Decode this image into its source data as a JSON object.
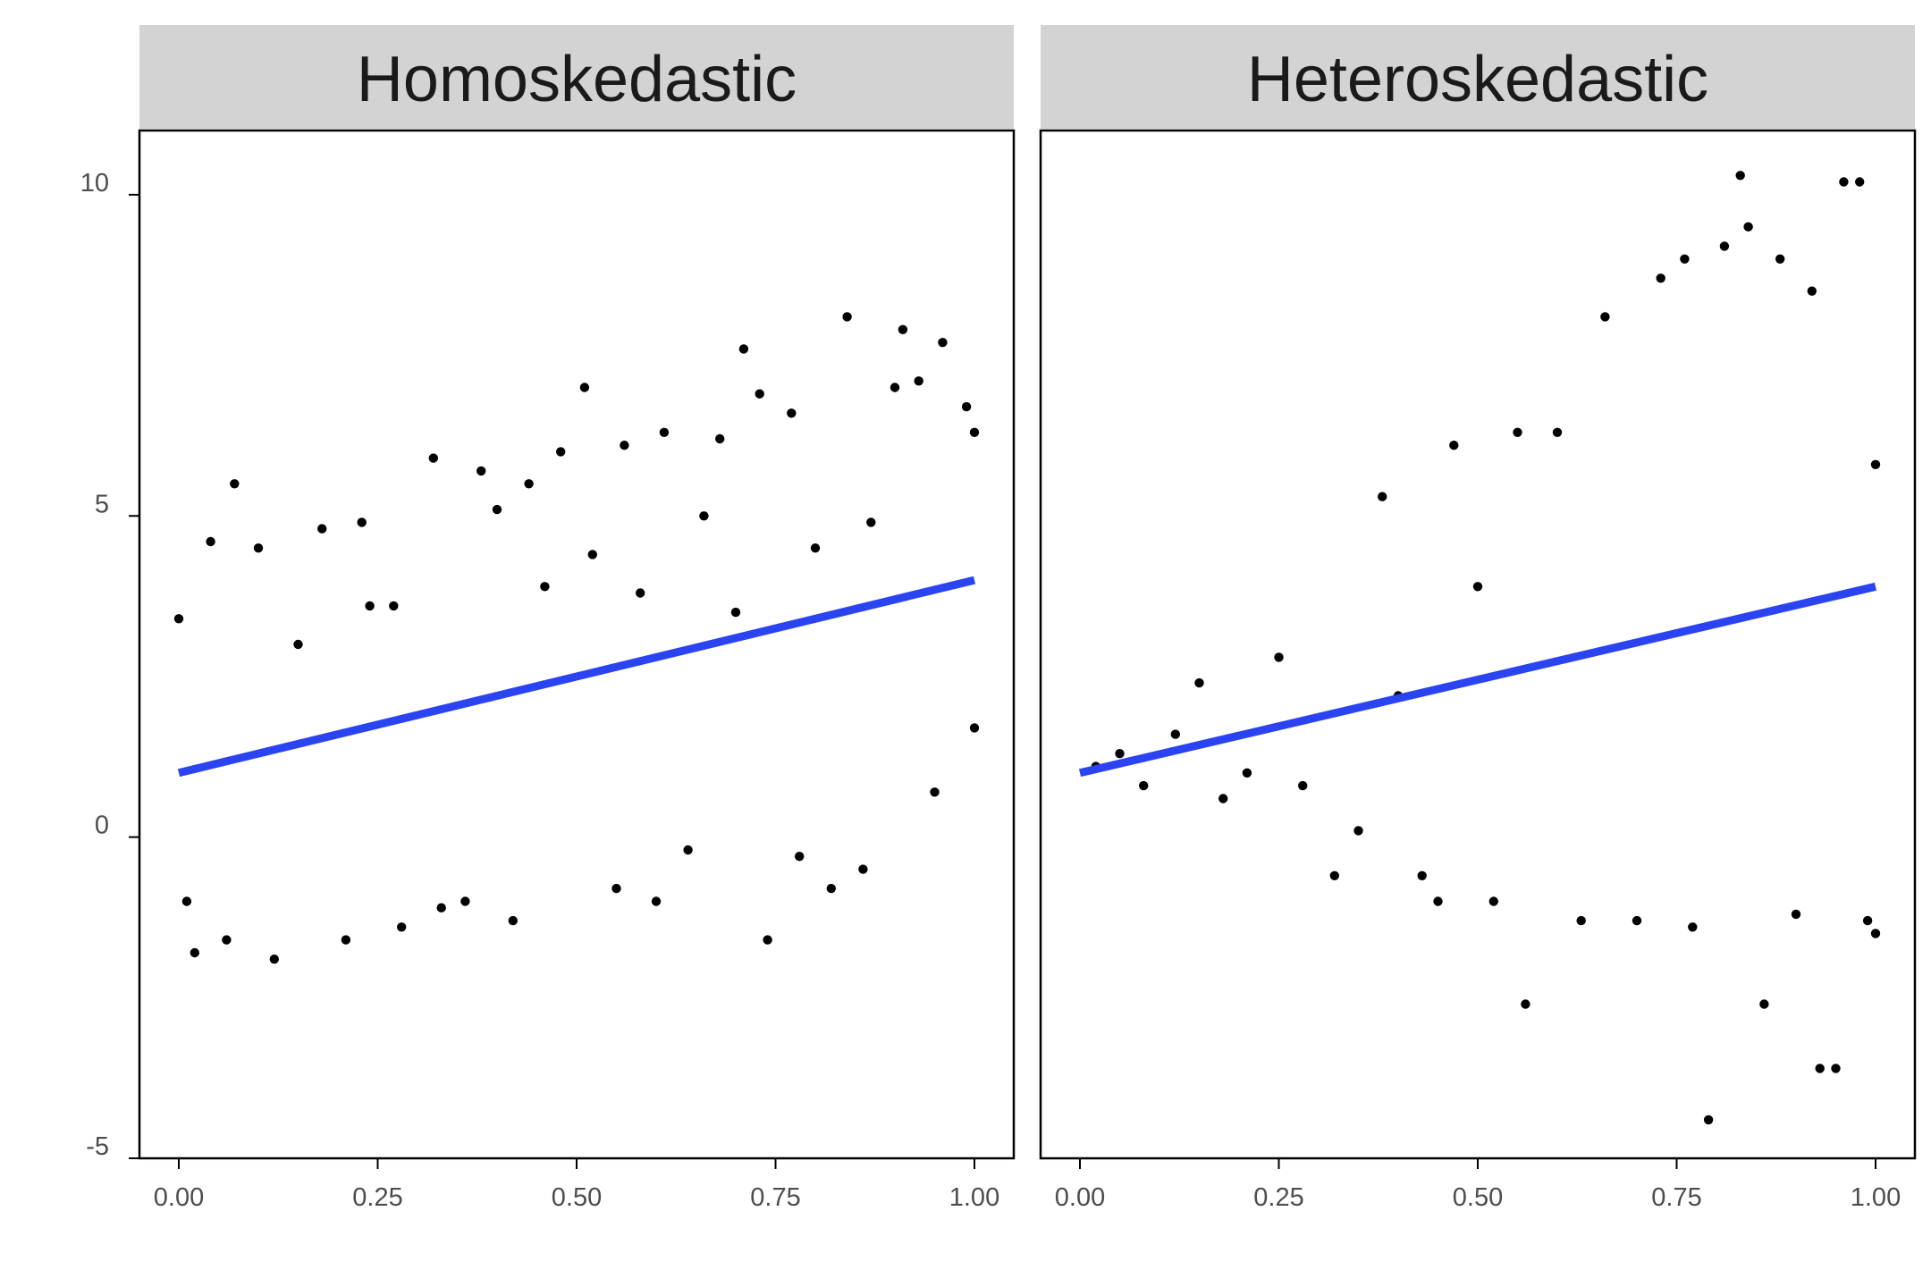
{
  "chart_data": {
    "type": "scatter",
    "facets": [
      "Homoskedastic",
      "Heteroskedastic"
    ],
    "x_axis": {
      "range": [
        0,
        1
      ],
      "ticks": [
        0,
        0.25,
        0.5,
        0.75,
        1
      ],
      "tick_labels": [
        "0.00",
        "0.25",
        "0.50",
        "0.75",
        "1.00"
      ]
    },
    "y_axis": {
      "range": [
        -5,
        11
      ],
      "ticks": [
        -5,
        0,
        5,
        10
      ],
      "tick_labels": [
        "-5",
        "0",
        "5",
        "10"
      ],
      "shared": true
    },
    "grid": false,
    "legend": "none",
    "point_color": "#000000",
    "fit_color": "#2b44f2",
    "panels": [
      {
        "name": "Homoskedastic",
        "fit_line": {
          "x": [
            0,
            1
          ],
          "y": [
            1.0,
            4.0
          ]
        },
        "points": [
          [
            0.0,
            3.4
          ],
          [
            0.01,
            -1.0
          ],
          [
            0.02,
            -1.8
          ],
          [
            0.04,
            4.6
          ],
          [
            0.07,
            5.5
          ],
          [
            0.12,
            -1.9
          ],
          [
            0.1,
            4.5
          ],
          [
            0.06,
            -1.6
          ],
          [
            0.15,
            3.0
          ],
          [
            0.18,
            4.8
          ],
          [
            0.21,
            -1.6
          ],
          [
            0.23,
            4.9
          ],
          [
            0.24,
            3.6
          ],
          [
            0.27,
            3.6
          ],
          [
            0.28,
            -1.4
          ],
          [
            0.32,
            5.9
          ],
          [
            0.33,
            -1.1
          ],
          [
            0.36,
            -1.0
          ],
          [
            0.38,
            5.7
          ],
          [
            0.4,
            5.1
          ],
          [
            0.42,
            -1.3
          ],
          [
            0.44,
            5.5
          ],
          [
            0.46,
            3.9
          ],
          [
            0.48,
            6.0
          ],
          [
            0.51,
            7.0
          ],
          [
            0.52,
            4.4
          ],
          [
            0.55,
            -0.8
          ],
          [
            0.56,
            6.1
          ],
          [
            0.58,
            3.8
          ],
          [
            0.6,
            -1.0
          ],
          [
            0.61,
            6.3
          ],
          [
            0.64,
            -0.2
          ],
          [
            0.66,
            5.0
          ],
          [
            0.68,
            6.2
          ],
          [
            0.7,
            3.5
          ],
          [
            0.71,
            7.6
          ],
          [
            0.73,
            6.9
          ],
          [
            0.74,
            -1.6
          ],
          [
            0.77,
            6.6
          ],
          [
            0.78,
            -0.3
          ],
          [
            0.8,
            4.5
          ],
          [
            0.82,
            -0.8
          ],
          [
            0.84,
            8.1
          ],
          [
            0.86,
            -0.5
          ],
          [
            0.87,
            4.9
          ],
          [
            0.9,
            7.0
          ],
          [
            0.91,
            7.9
          ],
          [
            0.93,
            7.1
          ],
          [
            0.95,
            0.7
          ],
          [
            0.96,
            7.7
          ],
          [
            0.99,
            6.7
          ],
          [
            1.0,
            6.3
          ],
          [
            1.0,
            1.7
          ]
        ]
      },
      {
        "name": "Heteroskedastic",
        "fit_line": {
          "x": [
            0,
            1
          ],
          "y": [
            1.0,
            3.9
          ]
        },
        "points": [
          [
            0.02,
            1.1
          ],
          [
            0.05,
            1.3
          ],
          [
            0.08,
            0.8
          ],
          [
            0.12,
            1.6
          ],
          [
            0.15,
            2.4
          ],
          [
            0.18,
            0.6
          ],
          [
            0.21,
            1.0
          ],
          [
            0.25,
            2.8
          ],
          [
            0.28,
            0.8
          ],
          [
            0.32,
            -0.6
          ],
          [
            0.35,
            0.1
          ],
          [
            0.38,
            5.3
          ],
          [
            0.4,
            2.2
          ],
          [
            0.43,
            -0.6
          ],
          [
            0.45,
            -1.0
          ],
          [
            0.47,
            6.1
          ],
          [
            0.5,
            3.9
          ],
          [
            0.52,
            -1.0
          ],
          [
            0.56,
            -2.6
          ],
          [
            0.55,
            6.3
          ],
          [
            0.6,
            6.3
          ],
          [
            0.63,
            -1.3
          ],
          [
            0.66,
            8.1
          ],
          [
            0.7,
            -1.3
          ],
          [
            0.73,
            8.7
          ],
          [
            0.76,
            9.0
          ],
          [
            0.77,
            -1.4
          ],
          [
            0.79,
            -4.4
          ],
          [
            0.81,
            9.2
          ],
          [
            0.83,
            10.3
          ],
          [
            0.84,
            9.5
          ],
          [
            0.86,
            -2.6
          ],
          [
            0.88,
            9.0
          ],
          [
            0.9,
            -1.2
          ],
          [
            0.92,
            8.5
          ],
          [
            0.93,
            -3.6
          ],
          [
            0.95,
            -3.6
          ],
          [
            0.96,
            10.2
          ],
          [
            0.98,
            10.2
          ],
          [
            0.99,
            -1.3
          ],
          [
            1.0,
            -1.5
          ],
          [
            1.0,
            5.8
          ]
        ]
      }
    ]
  }
}
